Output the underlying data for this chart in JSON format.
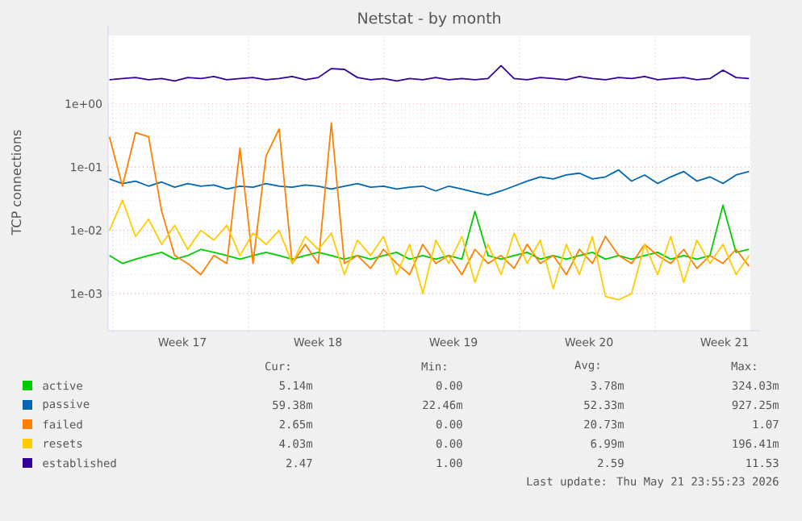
{
  "chart_data": {
    "type": "line",
    "title": "Netstat - by month",
    "ylabel": "TCP connections",
    "categories": [
      null,
      null,
      null,
      null,
      null,
      null,
      null,
      null,
      null,
      null,
      null,
      null,
      null,
      null,
      null,
      null,
      null,
      null,
      null,
      null,
      null,
      null,
      null,
      null,
      null,
      null,
      null,
      null,
      null,
      null,
      null,
      null,
      null,
      null,
      null,
      null,
      null,
      null,
      null,
      null,
      null,
      null,
      null,
      null,
      null,
      null,
      null,
      null,
      null,
      null
    ],
    "series": [
      {
        "name": "active",
        "color": "#00cc00",
        "values": [
          0.004,
          0.003,
          0.0035,
          0.004,
          0.0045,
          0.0035,
          0.004,
          0.005,
          0.0045,
          0.004,
          0.0035,
          0.004,
          0.0045,
          0.004,
          0.0035,
          0.004,
          0.0045,
          0.004,
          0.0035,
          0.004,
          0.0035,
          0.004,
          0.0045,
          0.0035,
          0.004,
          0.0035,
          0.004,
          0.0035,
          0.02,
          0.004,
          0.0035,
          0.004,
          0.0045,
          0.0035,
          0.004,
          0.0035,
          0.004,
          0.0045,
          0.0035,
          0.004,
          0.0035,
          0.004,
          0.0045,
          0.0035,
          0.004,
          0.0035,
          0.004,
          0.025,
          0.0045,
          0.005
        ]
      },
      {
        "name": "passive",
        "color": "#0066b3",
        "values": [
          0.065,
          0.055,
          0.06,
          0.05,
          0.058,
          0.048,
          0.055,
          0.05,
          0.052,
          0.045,
          0.05,
          0.048,
          0.055,
          0.05,
          0.048,
          0.052,
          0.05,
          0.045,
          0.05,
          0.055,
          0.048,
          0.05,
          0.045,
          0.048,
          0.05,
          0.042,
          0.05,
          0.045,
          0.04,
          0.036,
          0.042,
          0.05,
          0.06,
          0.07,
          0.065,
          0.075,
          0.08,
          0.065,
          0.07,
          0.09,
          0.06,
          0.075,
          0.055,
          0.07,
          0.085,
          0.06,
          0.07,
          0.055,
          0.075,
          0.085
        ]
      },
      {
        "name": "failed",
        "color": "#ff8000",
        "values": [
          0.3,
          0.05,
          0.35,
          0.3,
          0.02,
          0.004,
          0.003,
          0.002,
          0.004,
          0.003,
          0.2,
          0.003,
          0.15,
          0.4,
          0.003,
          0.006,
          0.003,
          0.5,
          0.003,
          0.004,
          0.0025,
          0.005,
          0.003,
          0.002,
          0.006,
          0.003,
          0.004,
          0.002,
          0.005,
          0.003,
          0.004,
          0.0025,
          0.006,
          0.003,
          0.004,
          0.002,
          0.005,
          0.003,
          0.008,
          0.004,
          0.003,
          0.006,
          0.004,
          0.003,
          0.005,
          0.0025,
          0.004,
          0.003,
          0.005,
          0.0027
        ]
      },
      {
        "name": "resets",
        "color": "#ffcc00",
        "values": [
          0.01,
          0.03,
          0.008,
          0.015,
          0.006,
          0.012,
          0.005,
          0.01,
          0.007,
          0.012,
          0.004,
          0.009,
          0.006,
          0.01,
          0.003,
          0.008,
          0.005,
          0.009,
          0.002,
          0.007,
          0.004,
          0.008,
          0.002,
          0.006,
          0.001,
          0.007,
          0.003,
          0.008,
          0.0015,
          0.006,
          0.002,
          0.009,
          0.003,
          0.007,
          0.0012,
          0.006,
          0.002,
          0.008,
          0.0009,
          0.0008,
          0.001,
          0.006,
          0.002,
          0.008,
          0.0015,
          0.007,
          0.003,
          0.006,
          0.002,
          0.004
        ]
      },
      {
        "name": "established",
        "color": "#330099",
        "values": [
          2.4,
          2.5,
          2.6,
          2.4,
          2.5,
          2.3,
          2.6,
          2.5,
          2.7,
          2.4,
          2.5,
          2.6,
          2.4,
          2.5,
          2.7,
          2.4,
          2.6,
          3.6,
          3.5,
          2.6,
          2.4,
          2.5,
          2.3,
          2.5,
          2.4,
          2.6,
          2.4,
          2.5,
          2.4,
          2.5,
          4.0,
          2.5,
          2.4,
          2.6,
          2.5,
          2.4,
          2.7,
          2.5,
          2.4,
          2.6,
          2.5,
          2.7,
          2.4,
          2.5,
          2.6,
          2.4,
          2.5,
          3.4,
          2.6,
          2.5
        ]
      }
    ],
    "ylim": [
      0.00026,
      12
    ],
    "yticks": [
      {
        "value": 0.001,
        "label": "1e-03"
      },
      {
        "value": 0.01,
        "label": "1e-02"
      },
      {
        "value": 0.1,
        "label": "1e-01"
      },
      {
        "value": 1,
        "label": "1e+00"
      }
    ],
    "log": "y",
    "grid": true,
    "legend": "bottom",
    "line_style": "solid",
    "annotations": [
      "Week 17",
      "Week 18",
      "Week 19",
      "Week 20",
      "Week 21",
      "Cur:",
      "Min:",
      "Avg:",
      "Max:",
      "5.14m",
      "0.00",
      "3.78m",
      "324.03m",
      "59.38m",
      "22.46m",
      "52.33m",
      "927.25m",
      "2.65m",
      "0.00",
      "20.73m",
      "1.07",
      "4.03m",
      "0.00",
      "6.99m",
      "196.41m",
      "2.47",
      "1.00",
      "2.59",
      "11.53",
      "Last update: Thu May 21 23:55:23 2026"
    ]
  }
}
